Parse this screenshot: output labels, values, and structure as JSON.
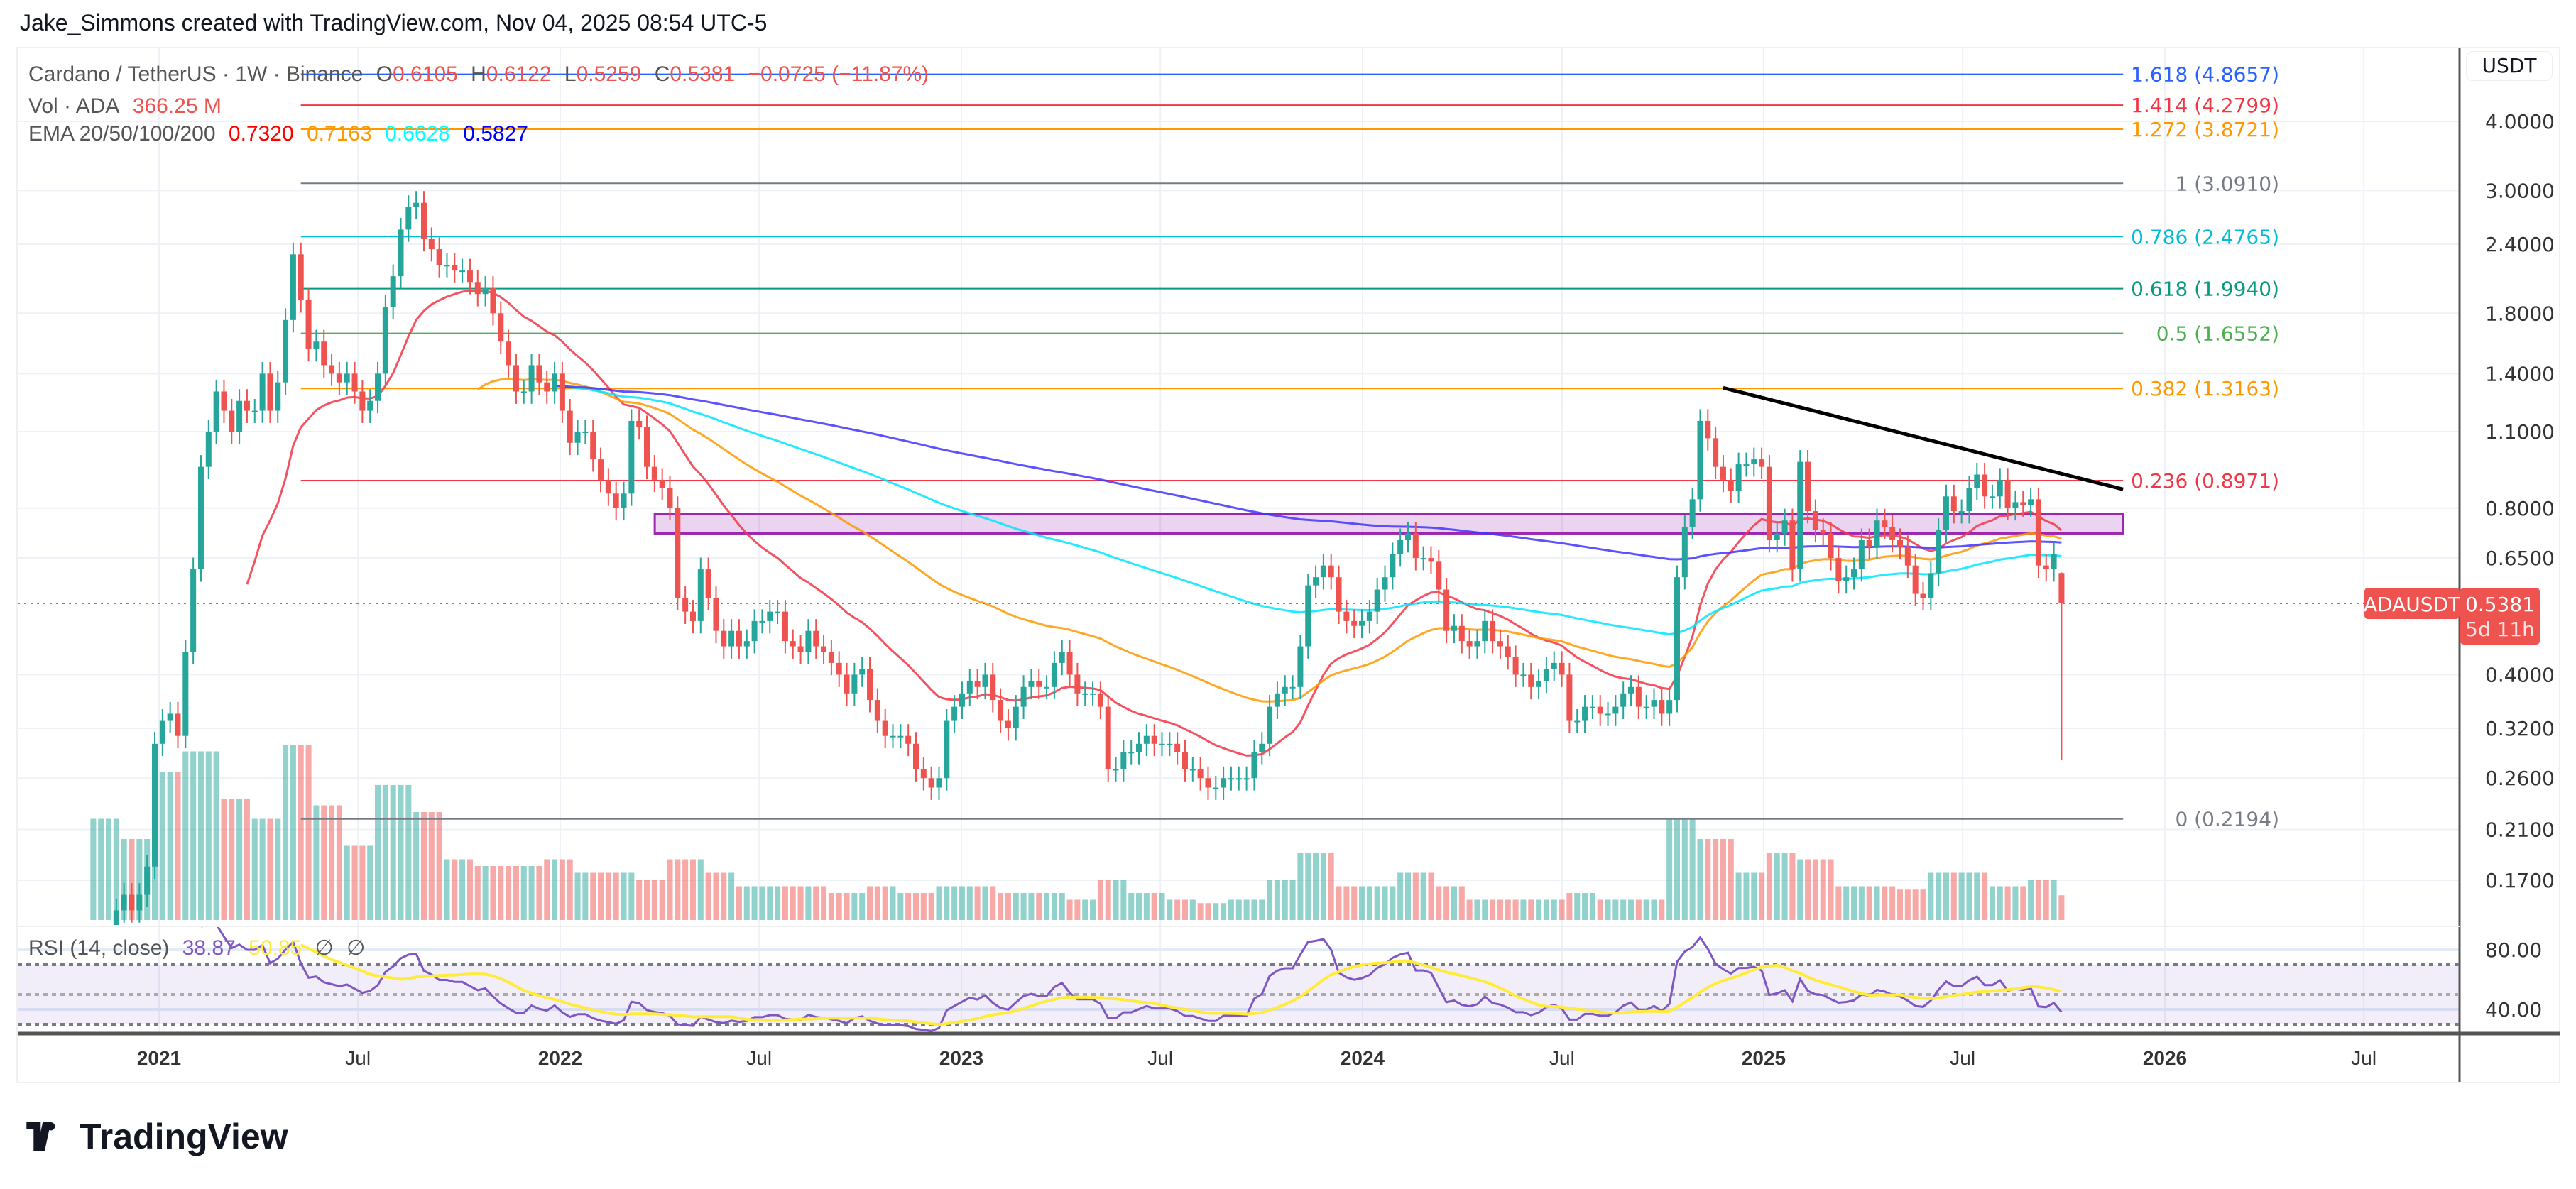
{
  "attribution": "Jake_Simmons created with TradingView.com, Nov 04, 2025 08:54 UTC-5",
  "legend": {
    "symbol": "Cardano / TetherUS · 1W · Binance",
    "o_label": "O",
    "o": "0.6105",
    "h_label": "H",
    "h": "0.6122",
    "l_label": "L",
    "l": "0.5259",
    "c_label": "C",
    "c": "0.5381",
    "change": "−0.0725 (−11.87%)",
    "vol_label": "Vol · ADA",
    "vol": "366.25 M",
    "ema_label": "EMA 20/50/100/200",
    "ema20": "0.7320",
    "ema50": "0.7163",
    "ema100": "0.6628",
    "ema200": "0.5827",
    "rsi_label": "RSI (14, close)",
    "rsi": "38.87",
    "rsi_ma": "50.85",
    "rsi_na1": "∅",
    "rsi_na2": "∅"
  },
  "currency_button": "USDT",
  "last_price": {
    "symbol": "ADAUSDT",
    "price": "0.5381",
    "countdown": "5d 11h",
    "color": "#ef5350"
  },
  "logo_text": "TradingView",
  "colors": {
    "up": "#26a69a",
    "down": "#ef5350",
    "ema20": "#f23645",
    "ema50": "#ff9800",
    "ema100": "#00e5ff",
    "ema200": "#3f35ff",
    "rsi": "#7e57c2",
    "rsi_ma": "#ffeb3b",
    "trendline": "#000000",
    "zone": "#9c27b0"
  },
  "chart_data": {
    "type": "candlestick",
    "interval": "1W",
    "y_scale": "log",
    "ylim": [
      0.144,
      5.2
    ],
    "grid": true,
    "y_ticks": [
      "4.0000",
      "3.0000",
      "2.4000",
      "1.8000",
      "1.4000",
      "1.1000",
      "0.8000",
      "0.6500",
      "0.4000",
      "0.3200",
      "0.2600",
      "0.2100",
      "0.1700"
    ],
    "x_ticks": [
      [
        "2021",
        "2021-01-01"
      ],
      [
        "Jul",
        "2021-07-01"
      ],
      [
        "2022",
        "2022-01-01"
      ],
      [
        "Jul",
        "2022-07-01"
      ],
      [
        "2023",
        "2023-01-01"
      ],
      [
        "Jul",
        "2023-07-01"
      ],
      [
        "2024",
        "2024-01-01"
      ],
      [
        "Jul",
        "2024-07-01"
      ],
      [
        "2025",
        "2025-01-01"
      ],
      [
        "Jul",
        "2025-07-01"
      ],
      [
        "2026",
        "2026-01-01"
      ],
      [
        "Jul",
        "2026-07-01"
      ]
    ],
    "first_week": "2020-11-02",
    "weekly_closes_by_month": [
      [
        "2020-11",
        [
          0.09,
          0.1,
          0.12,
          0.15
        ],
        1500
      ],
      [
        "2020-12",
        [
          0.16,
          0.15,
          0.16,
          0.18
        ],
        1200
      ],
      [
        "2021-01",
        [
          0.3,
          0.33,
          0.34,
          0.31
        ],
        2200
      ],
      [
        "2021-02",
        [
          0.44,
          0.62,
          0.95,
          1.1,
          1.3
        ],
        2500
      ],
      [
        "2021-03",
        [
          1.2,
          1.1,
          1.25,
          1.2
        ],
        1800
      ],
      [
        "2021-04",
        [
          1.2,
          1.4,
          1.2,
          1.35
        ],
        1500
      ],
      [
        "2021-05",
        [
          1.75,
          2.3,
          1.9,
          1.55
        ],
        2600
      ],
      [
        "2021-06",
        [
          1.6,
          1.45,
          1.4,
          1.35
        ],
        1700
      ],
      [
        "2021-07",
        [
          1.4,
          1.3,
          1.2,
          1.25
        ],
        1100
      ],
      [
        "2021-08",
        [
          1.4,
          1.85,
          2.1,
          2.55,
          2.8
        ],
        2000
      ],
      [
        "2021-09",
        [
          2.85,
          2.45,
          2.35,
          2.2
        ],
        1600
      ],
      [
        "2021-10",
        [
          2.2,
          2.15,
          2.15,
          2.05
        ],
        900
      ],
      [
        "2021-11",
        [
          1.95,
          2.0,
          1.8,
          1.6
        ],
        800
      ],
      [
        "2021-12",
        [
          1.45,
          1.3,
          1.3,
          1.45,
          1.35
        ],
        800
      ],
      [
        "2022-01",
        [
          1.3,
          1.4,
          1.2,
          1.05
        ],
        900
      ],
      [
        "2022-02",
        [
          1.1,
          1.1,
          0.98,
          0.9
        ],
        700
      ],
      [
        "2022-03",
        [
          0.85,
          0.8,
          0.85,
          1.15
        ],
        700
      ],
      [
        "2022-04",
        [
          1.12,
          0.95,
          0.9,
          0.87
        ],
        600
      ],
      [
        "2022-05",
        [
          0.8,
          0.55,
          0.52,
          0.5,
          0.62
        ],
        900
      ],
      [
        "2022-06",
        [
          0.55,
          0.48,
          0.45,
          0.48
        ],
        700
      ],
      [
        "2022-07",
        [
          0.45,
          0.46,
          0.5,
          0.5
        ],
        500
      ],
      [
        "2022-08",
        [
          0.52,
          0.52,
          0.46,
          0.45
        ],
        500
      ],
      [
        "2022-09",
        [
          0.44,
          0.48,
          0.45,
          0.44
        ],
        500
      ],
      [
        "2022-10",
        [
          0.42,
          0.4,
          0.37,
          0.4,
          0.41
        ],
        400
      ],
      [
        "2022-11",
        [
          0.36,
          0.33,
          0.31,
          0.31
        ],
        500
      ],
      [
        "2022-12",
        [
          0.31,
          0.3,
          0.27,
          0.26,
          0.25
        ],
        400
      ],
      [
        "2023-01",
        [
          0.26,
          0.33,
          0.35,
          0.37
        ],
        500
      ],
      [
        "2023-02",
        [
          0.39,
          0.38,
          0.4,
          0.36
        ],
        500
      ],
      [
        "2023-03",
        [
          0.33,
          0.32,
          0.35,
          0.38,
          0.39
        ],
        400
      ],
      [
        "2023-04",
        [
          0.38,
          0.38,
          0.42,
          0.44
        ],
        400
      ],
      [
        "2023-05",
        [
          0.4,
          0.37,
          0.37,
          0.37
        ],
        300
      ],
      [
        "2023-06",
        [
          0.35,
          0.27,
          0.27,
          0.29
        ],
        600
      ],
      [
        "2023-07",
        [
          0.29,
          0.3,
          0.31,
          0.3,
          0.3
        ],
        400
      ],
      [
        "2023-08",
        [
          0.3,
          0.29,
          0.27,
          0.27
        ],
        300
      ],
      [
        "2023-09",
        [
          0.26,
          0.25,
          0.25,
          0.26
        ],
        250
      ],
      [
        "2023-10",
        [
          0.26,
          0.26,
          0.26,
          0.29,
          0.3
        ],
        300
      ],
      [
        "2023-11",
        [
          0.35,
          0.37,
          0.38,
          0.38
        ],
        600
      ],
      [
        "2023-12",
        [
          0.45,
          0.58,
          0.6,
          0.63,
          0.6
        ],
        1000
      ],
      [
        "2024-01",
        [
          0.52,
          0.5,
          0.49,
          0.5
        ],
        500
      ],
      [
        "2024-02",
        [
          0.52,
          0.57,
          0.6,
          0.66
        ],
        500
      ],
      [
        "2024-03",
        [
          0.7,
          0.72,
          0.65,
          0.65,
          0.64
        ],
        700
      ],
      [
        "2024-04",
        [
          0.57,
          0.48,
          0.49,
          0.46
        ],
        500
      ],
      [
        "2024-05",
        [
          0.45,
          0.46,
          0.5,
          0.46
        ],
        300
      ],
      [
        "2024-06",
        [
          0.45,
          0.43,
          0.4,
          0.4
        ],
        300
      ],
      [
        "2024-07",
        [
          0.38,
          0.39,
          0.41,
          0.42,
          0.4
        ],
        300
      ],
      [
        "2024-08",
        [
          0.33,
          0.33,
          0.35,
          0.35
        ],
        400
      ],
      [
        "2024-09",
        [
          0.34,
          0.34,
          0.35,
          0.37,
          0.38
        ],
        300
      ],
      [
        "2024-10",
        [
          0.35,
          0.35,
          0.36,
          0.34
        ],
        300
      ],
      [
        "2024-11",
        [
          0.36,
          0.6,
          0.74,
          0.83
        ],
        1500
      ],
      [
        "2024-12",
        [
          1.15,
          1.07,
          0.95,
          0.9,
          0.86
        ],
        1200
      ],
      [
        "2025-01",
        [
          0.96,
          0.96,
          0.98,
          0.95
        ],
        700
      ],
      [
        "2025-02",
        [
          0.7,
          0.72,
          0.76,
          0.62
        ],
        1000
      ],
      [
        "2025-03",
        [
          0.97,
          0.79,
          0.73,
          0.72,
          0.65
        ],
        900
      ],
      [
        "2025-04",
        [
          0.59,
          0.6,
          0.62,
          0.7
        ],
        500
      ],
      [
        "2025-05",
        [
          0.68,
          0.76,
          0.74,
          0.7
        ],
        500
      ],
      [
        "2025-06",
        [
          0.68,
          0.63,
          0.56,
          0.55
        ],
        450
      ],
      [
        "2025-07",
        [
          0.61,
          0.73,
          0.84,
          0.79
        ],
        700
      ],
      [
        "2025-08",
        [
          0.79,
          0.87,
          0.92,
          0.84
        ],
        700
      ],
      [
        "2025-09",
        [
          0.84,
          0.9,
          0.8,
          0.82,
          0.81
        ],
        500
      ],
      [
        "2025-10",
        [
          0.83,
          0.63,
          0.62,
          0.66
        ],
        600
      ],
      [
        "2025-11",
        [
          0.5381
        ],
        366.25
      ]
    ],
    "last_candle": {
      "open": 0.6105,
      "high": 0.6122,
      "low": 0.5259,
      "close": 0.5381
    },
    "notable_wicks": [
      {
        "date": "2025-10-06",
        "low": 0.28
      }
    ],
    "fib_levels": [
      {
        "label": "1.618 (4.8657)",
        "price": 4.8657,
        "color": "#2962ff"
      },
      {
        "label": "1.414 (4.2799)",
        "price": 4.2799,
        "color": "#f23645"
      },
      {
        "label": "1.272 (3.8721)",
        "price": 3.8721,
        "color": "#ff9800"
      },
      {
        "label": "1 (3.0910)",
        "price": 3.091,
        "color": "#787b86"
      },
      {
        "label": "0.786 (2.4765)",
        "price": 2.4765,
        "color": "#00bcd4"
      },
      {
        "label": "0.618 (1.9940)",
        "price": 1.994,
        "color": "#089981"
      },
      {
        "label": "0.5 (1.6552)",
        "price": 1.6552,
        "color": "#4caf50"
      },
      {
        "label": "0.382 (1.3163)",
        "price": 1.3163,
        "color": "#ff9800"
      },
      {
        "label": "0.236 (0.8971)",
        "price": 0.8971,
        "color": "#f23645"
      },
      {
        "label": "0 (0.2194)",
        "price": 0.2194,
        "color": "#787b86"
      }
    ],
    "fib_range": [
      "2021-05-10",
      "2025-11-24"
    ],
    "zone": {
      "from": "2022-03-28",
      "to": "2025-11-24",
      "top": 0.78,
      "bottom": 0.72
    },
    "trendline": [
      [
        "2024-11-25",
        1.32
      ],
      [
        "2025-11-24",
        0.865
      ]
    ],
    "rsi": {
      "period": 14,
      "ma_period": 14,
      "ticks": [
        "80.00",
        "40.00"
      ],
      "bands": [
        70,
        50,
        30
      ]
    }
  }
}
